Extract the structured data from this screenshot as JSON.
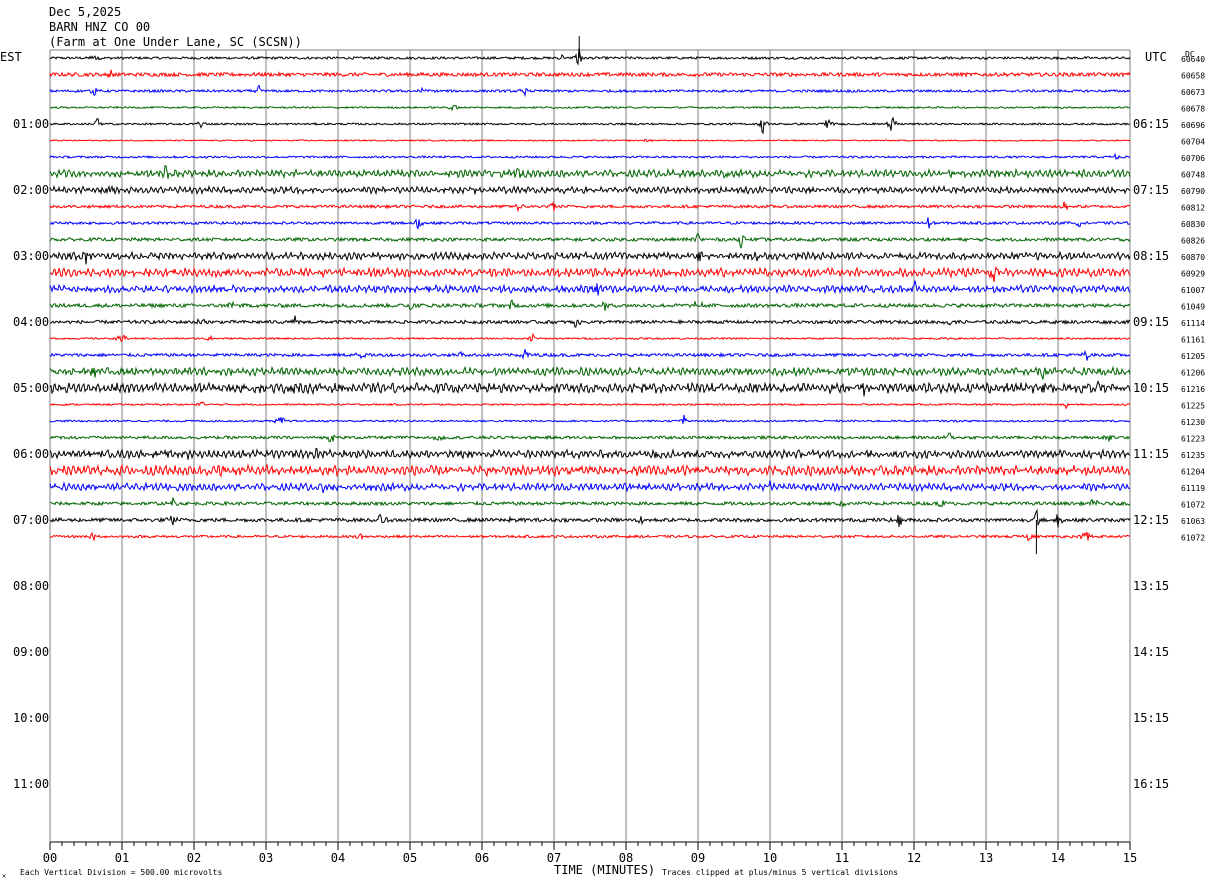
{
  "header": {
    "date": "Dec 5,2025",
    "station": "BARN HNZ CO 00",
    "location": "(Farm at One Under Lane, SC (SCSN))"
  },
  "axis": {
    "left_tz": "EST",
    "right_tz": "UTC",
    "dc_label": "DC",
    "x_title": "TIME (MINUTES)",
    "scale_note": "Each Vertical Division =  500.00 microvolts",
    "clip_note": "Traces clipped at plus/minus 5 vertical divisions",
    "corner_mark": "✕"
  },
  "colors": {
    "cycle": [
      "#000000",
      "#ff0000",
      "#0000ff",
      "#006400"
    ],
    "grid": "#808080"
  },
  "chart_data": {
    "type": "line",
    "title": "",
    "xlabel": "TIME (MINUTES)",
    "xlim": [
      0,
      15
    ],
    "x_ticks": [
      "00",
      "01",
      "02",
      "03",
      "04",
      "05",
      "06",
      "07",
      "08",
      "09",
      "10",
      "11",
      "12",
      "13",
      "14",
      "15"
    ],
    "left_hour_labels": [
      "01:00",
      "02:00",
      "03:00",
      "04:00",
      "05:00",
      "06:00",
      "07:00",
      "08:00",
      "09:00",
      "10:00",
      "11:00"
    ],
    "right_hour_labels": [
      "06:15",
      "07:15",
      "08:15",
      "09:15",
      "10:15",
      "11:15",
      "12:15",
      "13:15",
      "14:15",
      "15:15",
      "16:15"
    ],
    "rows_per_hour": 4,
    "total_rows": 44,
    "trace_dc_values": [
      "60640",
      "60658",
      "60673",
      "60678",
      "60696",
      "60704",
      "60706",
      "60748",
      "60790",
      "60812",
      "60830",
      "60826",
      "60870",
      "60929",
      "61007",
      "61049",
      "61114",
      "61161",
      "61205",
      "61206",
      "61216",
      "61225",
      "61230",
      "61223",
      "61235",
      "61204",
      "61119",
      "61072",
      "61063",
      "61072"
    ],
    "trace_noise_level": [
      1.2,
      1.8,
      1.2,
      0.8,
      0.9,
      0.6,
      1.0,
      2.2,
      2.0,
      1.4,
      1.3,
      1.6,
      2.2,
      2.6,
      2.2,
      1.8,
      1.6,
      0.8,
      1.5,
      2.4,
      3.0,
      0.8,
      0.9,
      1.4,
      2.4,
      3.0,
      2.2,
      1.6,
      1.8,
      1.2
    ],
    "events": [
      [
        [
          7.35,
          14,
          "up"
        ],
        [
          0.62,
          6
        ],
        [
          7.1,
          5
        ]
      ],
      [
        [
          0.85,
          6
        ]
      ],
      [
        [
          0.62,
          8
        ],
        [
          2.9,
          7
        ],
        [
          5.2,
          6
        ],
        [
          6.6,
          6
        ]
      ],
      [
        [
          5.6,
          7
        ]
      ],
      [
        [
          0.65,
          9
        ],
        [
          2.1,
          8
        ],
        [
          9.9,
          12
        ],
        [
          10.8,
          10
        ],
        [
          11.7,
          12
        ]
      ],
      [
        [
          8.3,
          3
        ]
      ],
      [
        [
          14.8,
          5
        ]
      ],
      [
        [
          1.6,
          7
        ],
        [
          4.8,
          6
        ],
        [
          6.5,
          7
        ],
        [
          9.4,
          6
        ]
      ],
      [
        [
          0.8,
          6
        ],
        [
          5.9,
          7
        ]
      ],
      [
        [
          6.5,
          8
        ],
        [
          14.1,
          9
        ],
        [
          7.0,
          6
        ]
      ],
      [
        [
          5.1,
          10
        ],
        [
          12.2,
          8
        ],
        [
          14.3,
          7
        ]
      ],
      [
        [
          9.0,
          9
        ],
        [
          9.6,
          8
        ]
      ],
      [
        [
          0.5,
          7
        ],
        [
          9.0,
          10
        ],
        [
          9.8,
          8
        ]
      ],
      [
        [
          13.1,
          12
        ],
        [
          1.7,
          6
        ],
        [
          5.4,
          6
        ]
      ],
      [
        [
          12.0,
          8
        ],
        [
          7.6,
          6
        ]
      ],
      [
        [
          2.5,
          7
        ],
        [
          5.0,
          7
        ],
        [
          6.4,
          8
        ],
        [
          7.7,
          8
        ],
        [
          9.0,
          9
        ]
      ],
      [
        [
          2.1,
          8
        ],
        [
          3.4,
          7
        ],
        [
          7.3,
          8
        ],
        [
          12.5,
          8
        ]
      ],
      [
        [
          1.0,
          9
        ],
        [
          2.2,
          7
        ],
        [
          6.7,
          6
        ]
      ],
      [
        [
          4.3,
          9
        ],
        [
          5.7,
          7
        ],
        [
          6.6,
          9
        ],
        [
          14.4,
          9
        ]
      ],
      [
        [
          0.6,
          7
        ],
        [
          13.8,
          8
        ],
        [
          14.6,
          7
        ]
      ],
      [
        [
          11.3,
          7
        ],
        [
          13.8,
          9
        ],
        [
          14.5,
          9
        ],
        [
          3.4,
          6
        ]
      ],
      [
        [
          2.1,
          6
        ],
        [
          14.1,
          8
        ]
      ],
      [
        [
          3.2,
          9
        ],
        [
          8.8,
          7
        ]
      ],
      [
        [
          3.9,
          7
        ],
        [
          5.4,
          6
        ],
        [
          12.5,
          8
        ],
        [
          14.7,
          9
        ]
      ],
      [
        [
          1.9,
          7
        ],
        [
          3.7,
          9
        ],
        [
          8.4,
          9
        ],
        [
          10.8,
          7
        ]
      ],
      [
        [
          2.4,
          7
        ],
        [
          8.5,
          8
        ],
        [
          14.0,
          9
        ]
      ],
      [
        [
          3.8,
          9
        ],
        [
          7.2,
          7
        ],
        [
          10.0,
          7
        ]
      ],
      [
        [
          1.7,
          7
        ],
        [
          11.0,
          6
        ],
        [
          12.4,
          7
        ],
        [
          14.5,
          8
        ]
      ],
      [
        [
          1.7,
          9
        ],
        [
          4.6,
          9
        ],
        [
          6.4,
          8
        ],
        [
          8.2,
          8
        ],
        [
          11.8,
          9
        ],
        [
          13.7,
          14,
          "down"
        ],
        [
          14.0,
          9
        ]
      ],
      [
        [
          0.6,
          7
        ],
        [
          4.3,
          7
        ],
        [
          13.6,
          8
        ],
        [
          14.4,
          11
        ]
      ]
    ]
  }
}
